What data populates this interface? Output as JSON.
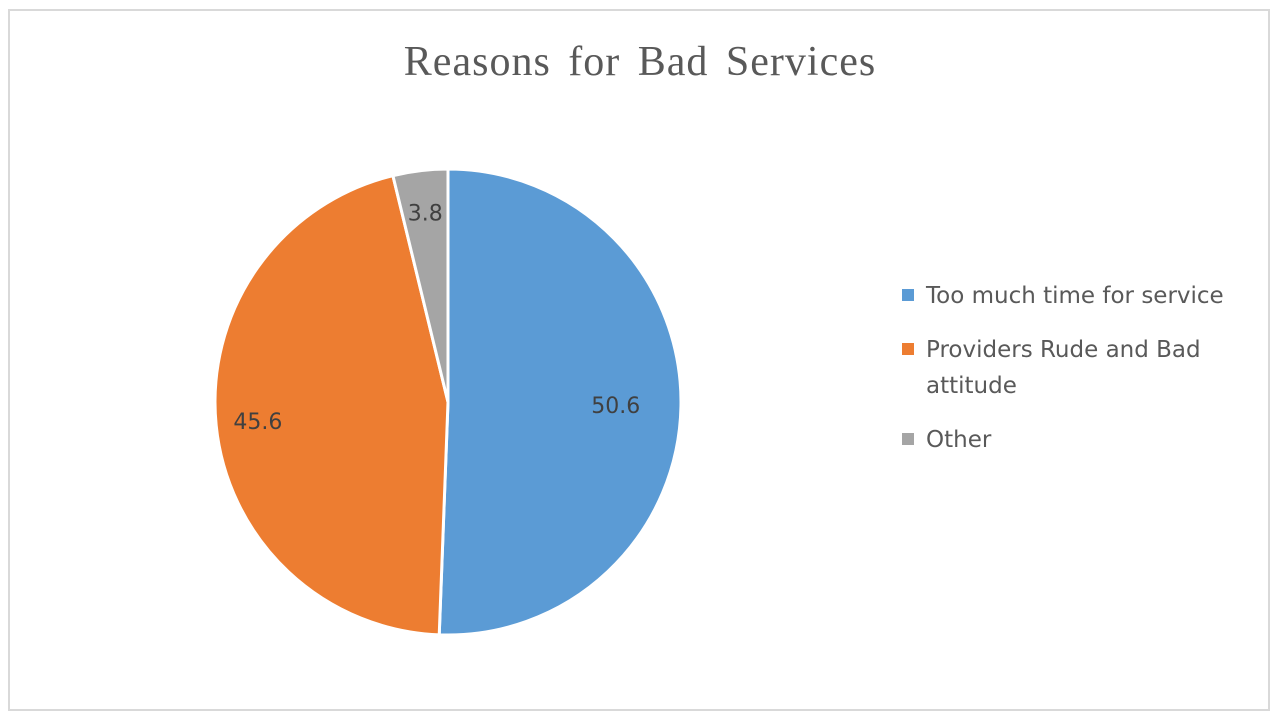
{
  "chart_data": {
    "type": "pie",
    "title": "Reasons for Bad Services",
    "categories": [
      "Too much time for service",
      "Providers Rude and Bad attitude",
      "Other"
    ],
    "values": [
      50.6,
      45.6,
      3.8
    ],
    "data_labels": [
      "50.6",
      "45.6",
      "3.8"
    ],
    "colors": [
      "#5b9bd5",
      "#ed7d31",
      "#a5a5a5"
    ],
    "legend_position": "right"
  }
}
